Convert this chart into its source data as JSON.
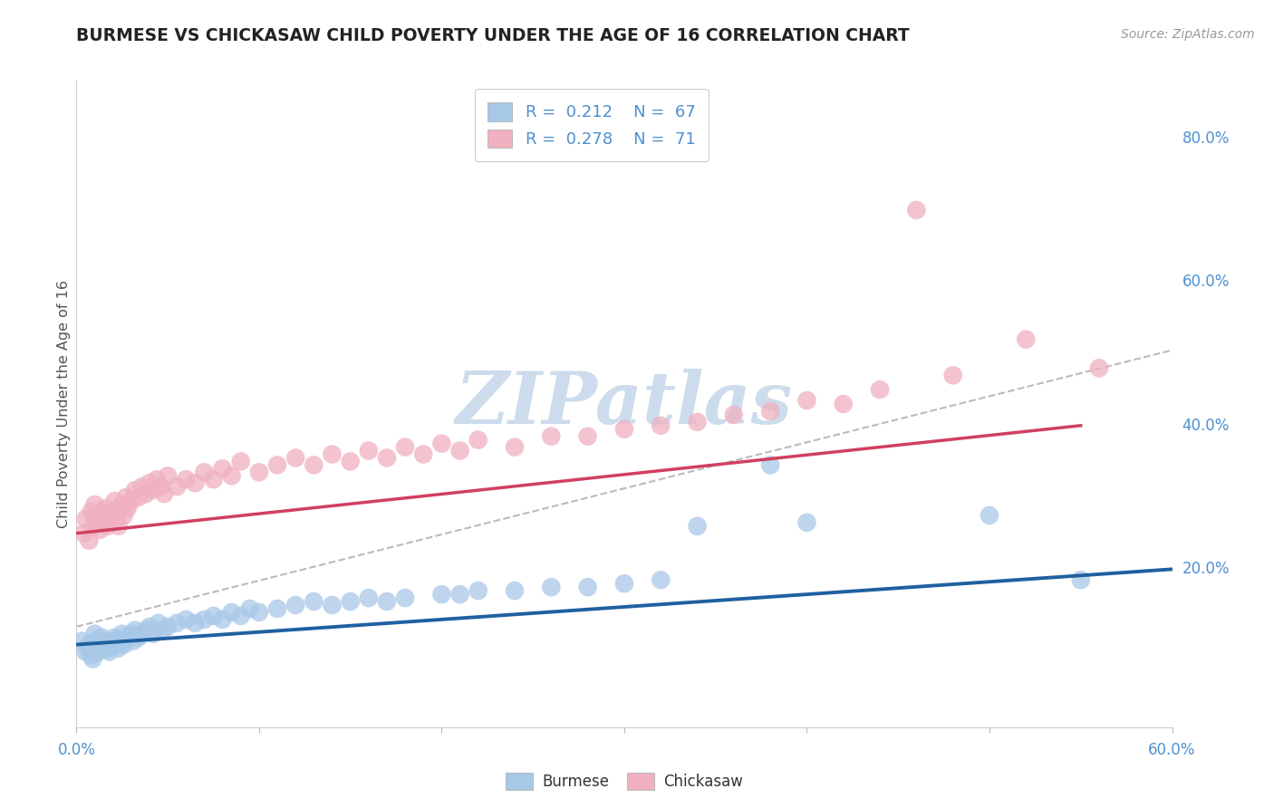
{
  "title": "BURMESE VS CHICKASAW CHILD POVERTY UNDER THE AGE OF 16 CORRELATION CHART",
  "source": "Source: ZipAtlas.com",
  "ylabel": "Child Poverty Under the Age of 16",
  "xlim": [
    0.0,
    0.6
  ],
  "ylim": [
    -0.02,
    0.88
  ],
  "burmese_color": "#a8c8e8",
  "chickasaw_color": "#f0b0c0",
  "burmese_line_color": "#2060a0",
  "chickasaw_line_color": "#d04060",
  "ref_line_color": "#bbbbbb",
  "watermark_color": "#ccdcec",
  "background_color": "#ffffff",
  "grid_color": "#dddddd",
  "tick_label_color": "#5090d0",
  "ytick_vals": [
    0.0,
    0.2,
    0.4,
    0.6,
    0.8
  ],
  "ytick_labels": [
    "",
    "20.0%",
    "40.0%",
    "60.0%",
    "80.0%"
  ],
  "burmese_x": [
    0.003,
    0.005,
    0.006,
    0.007,
    0.008,
    0.009,
    0.01,
    0.01,
    0.011,
    0.012,
    0.013,
    0.014,
    0.015,
    0.016,
    0.017,
    0.018,
    0.019,
    0.02,
    0.021,
    0.022,
    0.023,
    0.024,
    0.025,
    0.026,
    0.028,
    0.03,
    0.031,
    0.032,
    0.034,
    0.036,
    0.038,
    0.04,
    0.042,
    0.045,
    0.047,
    0.05,
    0.055,
    0.06,
    0.065,
    0.07,
    0.075,
    0.08,
    0.085,
    0.09,
    0.095,
    0.1,
    0.11,
    0.12,
    0.13,
    0.14,
    0.15,
    0.16,
    0.17,
    0.18,
    0.2,
    0.21,
    0.22,
    0.24,
    0.26,
    0.28,
    0.3,
    0.32,
    0.34,
    0.38,
    0.4,
    0.5,
    0.55
  ],
  "burmese_y": [
    0.1,
    0.085,
    0.09,
    0.095,
    0.08,
    0.075,
    0.1,
    0.11,
    0.095,
    0.085,
    0.09,
    0.105,
    0.095,
    0.1,
    0.09,
    0.085,
    0.095,
    0.1,
    0.105,
    0.095,
    0.09,
    0.1,
    0.11,
    0.095,
    0.105,
    0.11,
    0.1,
    0.115,
    0.105,
    0.11,
    0.115,
    0.12,
    0.11,
    0.125,
    0.115,
    0.12,
    0.125,
    0.13,
    0.125,
    0.13,
    0.135,
    0.13,
    0.14,
    0.135,
    0.145,
    0.14,
    0.145,
    0.15,
    0.155,
    0.15,
    0.155,
    0.16,
    0.155,
    0.16,
    0.165,
    0.165,
    0.17,
    0.17,
    0.175,
    0.175,
    0.18,
    0.185,
    0.26,
    0.345,
    0.265,
    0.275,
    0.185
  ],
  "chickasaw_x": [
    0.004,
    0.005,
    0.007,
    0.008,
    0.009,
    0.01,
    0.011,
    0.012,
    0.013,
    0.014,
    0.015,
    0.016,
    0.017,
    0.018,
    0.019,
    0.02,
    0.021,
    0.022,
    0.023,
    0.024,
    0.025,
    0.026,
    0.027,
    0.028,
    0.03,
    0.032,
    0.034,
    0.036,
    0.038,
    0.04,
    0.042,
    0.044,
    0.046,
    0.048,
    0.05,
    0.055,
    0.06,
    0.065,
    0.07,
    0.075,
    0.08,
    0.085,
    0.09,
    0.1,
    0.11,
    0.12,
    0.13,
    0.14,
    0.15,
    0.16,
    0.17,
    0.18,
    0.19,
    0.2,
    0.21,
    0.22,
    0.24,
    0.26,
    0.28,
    0.3,
    0.32,
    0.34,
    0.36,
    0.38,
    0.4,
    0.42,
    0.44,
    0.46,
    0.48,
    0.52,
    0.56
  ],
  "chickasaw_y": [
    0.25,
    0.27,
    0.24,
    0.28,
    0.26,
    0.29,
    0.275,
    0.265,
    0.255,
    0.28,
    0.27,
    0.285,
    0.26,
    0.275,
    0.265,
    0.28,
    0.295,
    0.27,
    0.26,
    0.285,
    0.29,
    0.275,
    0.3,
    0.285,
    0.295,
    0.31,
    0.3,
    0.315,
    0.305,
    0.32,
    0.31,
    0.325,
    0.315,
    0.305,
    0.33,
    0.315,
    0.325,
    0.32,
    0.335,
    0.325,
    0.34,
    0.33,
    0.35,
    0.335,
    0.345,
    0.355,
    0.345,
    0.36,
    0.35,
    0.365,
    0.355,
    0.37,
    0.36,
    0.375,
    0.365,
    0.38,
    0.37,
    0.385,
    0.385,
    0.395,
    0.4,
    0.405,
    0.415,
    0.42,
    0.435,
    0.43,
    0.45,
    0.7,
    0.47,
    0.52,
    0.48
  ],
  "bur_line_x0": 0.0,
  "bur_line_y0": 0.095,
  "bur_line_x1": 0.6,
  "bur_line_y1": 0.2,
  "chick_line_x0": 0.0,
  "chick_line_y0": 0.25,
  "chick_line_x1": 0.55,
  "chick_line_y1": 0.4,
  "ref_line_x0": 0.0,
  "ref_line_y0": 0.12,
  "ref_line_x1": 0.6,
  "ref_line_y1": 0.505
}
